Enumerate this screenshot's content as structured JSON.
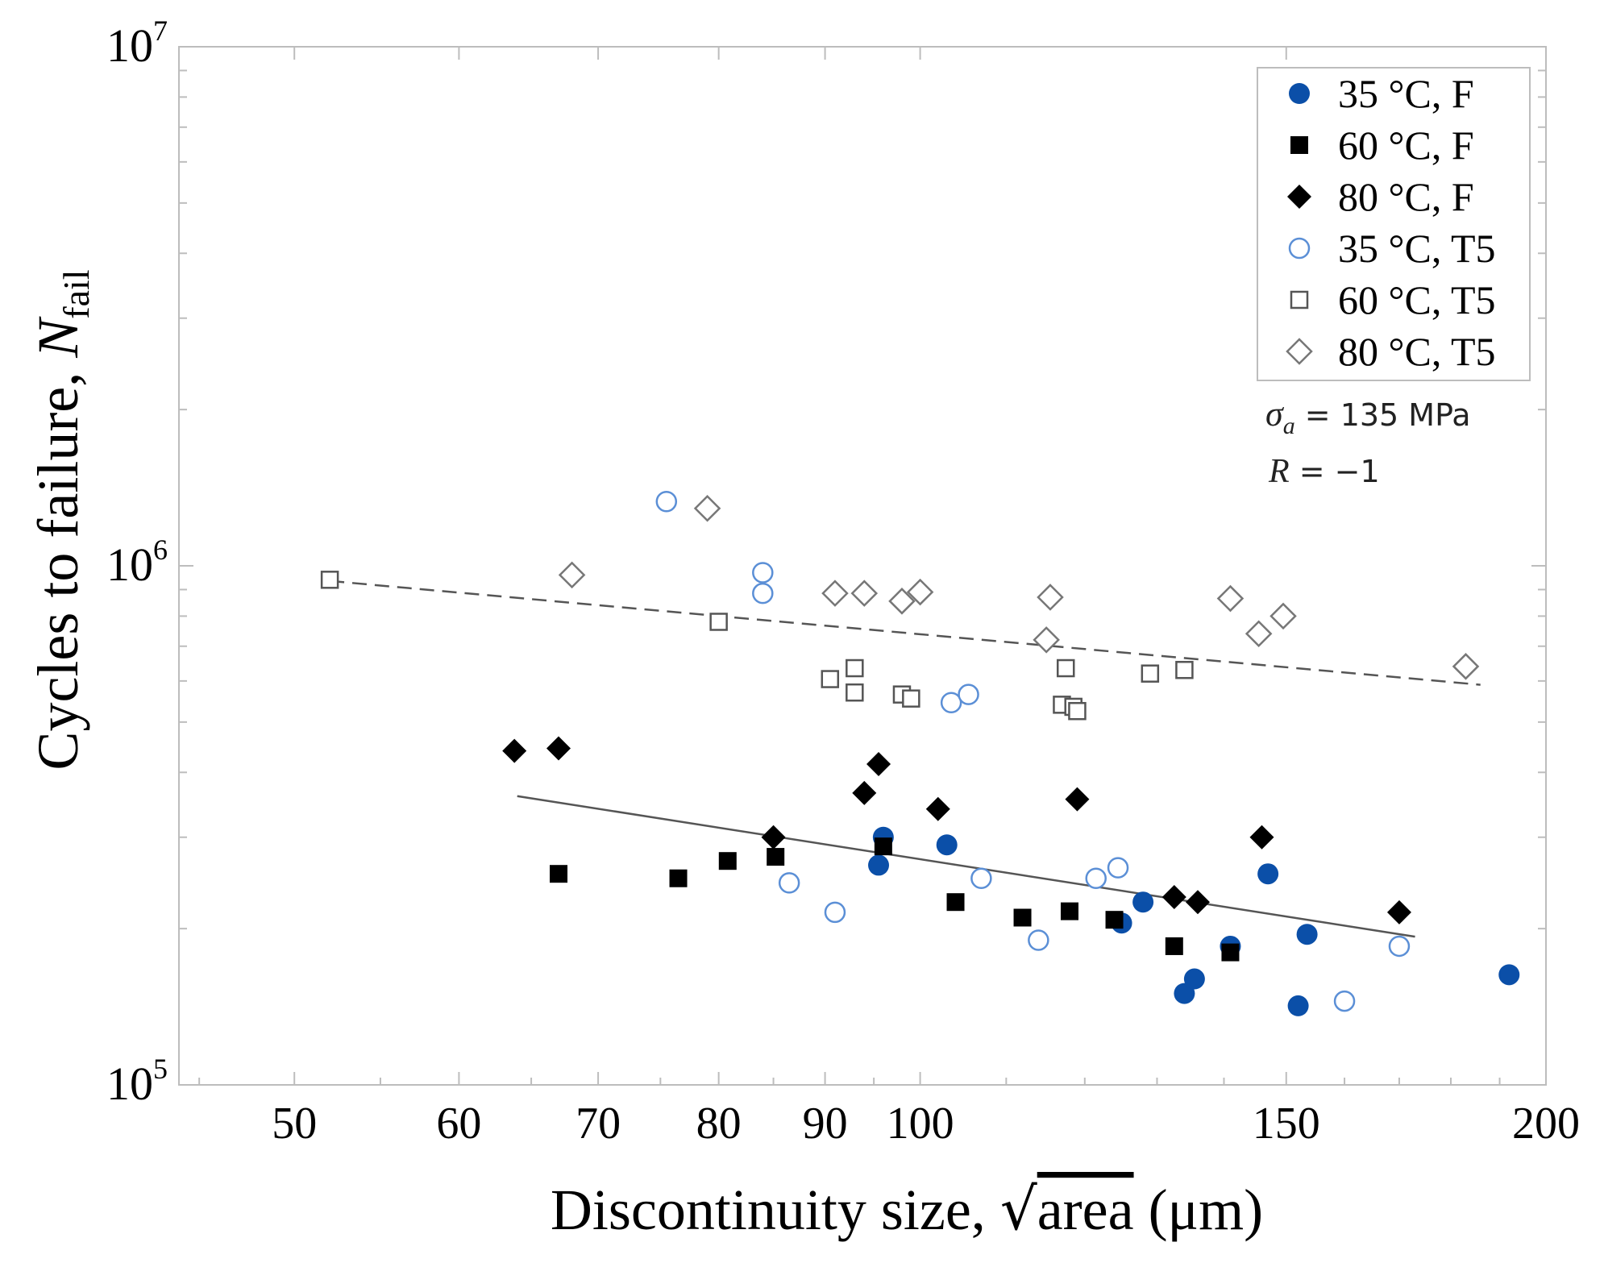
{
  "chart_data": {
    "type": "scatter",
    "xaxis": {
      "label_main": "Discontinuity size, ",
      "label_sqrt": "area",
      "label_unit": " (μm)",
      "scale": "log",
      "range": [
        44,
        200
      ],
      "ticks": [
        50,
        60,
        70,
        80,
        90,
        100,
        150,
        200
      ],
      "tick_labels": [
        "50",
        "60",
        "70",
        "80",
        "90",
        "100",
        "150",
        "200"
      ]
    },
    "yaxis": {
      "label_main": "Cycles to failure, ",
      "label_var": "N",
      "label_sub": "fail",
      "scale": "log",
      "range": [
        100000,
        10000000
      ],
      "ticks": [
        100000,
        1000000,
        10000000
      ],
      "tick_mantissa": [
        "10",
        "10",
        "10"
      ],
      "tick_exponent": [
        "5",
        "6",
        "7"
      ]
    },
    "legend": {
      "position": "top-right",
      "entries": [
        {
          "label": "35 °C, F",
          "marker": "circle",
          "filled": true,
          "color": "#0b4fa8"
        },
        {
          "label": "60 °C, F",
          "marker": "square",
          "filled": true,
          "color": "#000000"
        },
        {
          "label": "80 °C, F",
          "marker": "diamond",
          "filled": true,
          "color": "#000000"
        },
        {
          "label": "35 °C, T5",
          "marker": "circle",
          "filled": false,
          "color": "#5b8fd6"
        },
        {
          "label": "60 °C, T5",
          "marker": "square",
          "filled": false,
          "color": "#555555"
        },
        {
          "label": "80 °C, T5",
          "marker": "diamond",
          "filled": false,
          "color": "#777777"
        }
      ]
    },
    "annotations": {
      "sigma_var": "σ",
      "sigma_sub": "a",
      "sigma_rest": " = 135 MPa",
      "r_var": "R",
      "r_rest": " = −1"
    },
    "series": [
      {
        "name": "35 °C, F",
        "points": [
          {
            "x": 96,
            "y": 300000
          },
          {
            "x": 95.5,
            "y": 265000
          },
          {
            "x": 103,
            "y": 290000
          },
          {
            "x": 125,
            "y": 205000
          },
          {
            "x": 128,
            "y": 225000
          },
          {
            "x": 134,
            "y": 150000
          },
          {
            "x": 135.5,
            "y": 160000
          },
          {
            "x": 141,
            "y": 185000
          },
          {
            "x": 147,
            "y": 255000
          },
          {
            "x": 152,
            "y": 142000
          },
          {
            "x": 153.5,
            "y": 195000
          },
          {
            "x": 192,
            "y": 163000
          }
        ]
      },
      {
        "name": "60 °C, F",
        "points": [
          {
            "x": 67,
            "y": 255000
          },
          {
            "x": 76.5,
            "y": 250000
          },
          {
            "x": 80.8,
            "y": 270000
          },
          {
            "x": 85.2,
            "y": 275000
          },
          {
            "x": 96,
            "y": 288000
          },
          {
            "x": 104,
            "y": 225000
          },
          {
            "x": 112,
            "y": 210000
          },
          {
            "x": 118,
            "y": 216000
          },
          {
            "x": 124,
            "y": 208000
          },
          {
            "x": 132.5,
            "y": 185000
          },
          {
            "x": 141,
            "y": 180000
          }
        ]
      },
      {
        "name": "80 °C, F",
        "points": [
          {
            "x": 63.8,
            "y": 440000
          },
          {
            "x": 67,
            "y": 445000
          },
          {
            "x": 85,
            "y": 300000
          },
          {
            "x": 94,
            "y": 365000
          },
          {
            "x": 95.5,
            "y": 415000
          },
          {
            "x": 102,
            "y": 340000
          },
          {
            "x": 119,
            "y": 355000
          },
          {
            "x": 132.5,
            "y": 230000
          },
          {
            "x": 136,
            "y": 225000
          },
          {
            "x": 146,
            "y": 300000
          },
          {
            "x": 170,
            "y": 215000
          }
        ]
      },
      {
        "name": "35 °C, T5",
        "points": [
          {
            "x": 75.5,
            "y": 1330000
          },
          {
            "x": 84,
            "y": 970000
          },
          {
            "x": 84,
            "y": 885000
          },
          {
            "x": 86.5,
            "y": 245000
          },
          {
            "x": 91,
            "y": 215000
          },
          {
            "x": 103.5,
            "y": 545000
          },
          {
            "x": 105.5,
            "y": 565000
          },
          {
            "x": 107,
            "y": 250000
          },
          {
            "x": 114,
            "y": 190000
          },
          {
            "x": 121.5,
            "y": 250000
          },
          {
            "x": 124.5,
            "y": 262000
          },
          {
            "x": 160,
            "y": 145000
          },
          {
            "x": 170,
            "y": 185000
          }
        ]
      },
      {
        "name": "60 °C, T5",
        "points": [
          {
            "x": 52,
            "y": 940000
          },
          {
            "x": 80,
            "y": 780000
          },
          {
            "x": 90.5,
            "y": 605000
          },
          {
            "x": 93,
            "y": 635000
          },
          {
            "x": 93,
            "y": 570000
          },
          {
            "x": 98,
            "y": 565000
          },
          {
            "x": 99,
            "y": 555000
          },
          {
            "x": 117,
            "y": 540000
          },
          {
            "x": 117.5,
            "y": 635000
          },
          {
            "x": 118.5,
            "y": 535000
          },
          {
            "x": 119,
            "y": 525000
          },
          {
            "x": 129,
            "y": 620000
          },
          {
            "x": 134,
            "y": 630000
          }
        ]
      },
      {
        "name": "80 °C, T5",
        "points": [
          {
            "x": 68,
            "y": 960000
          },
          {
            "x": 79,
            "y": 1290000
          },
          {
            "x": 91,
            "y": 885000
          },
          {
            "x": 94,
            "y": 885000
          },
          {
            "x": 98,
            "y": 855000
          },
          {
            "x": 100,
            "y": 890000
          },
          {
            "x": 115,
            "y": 720000
          },
          {
            "x": 115.5,
            "y": 870000
          },
          {
            "x": 141,
            "y": 865000
          },
          {
            "x": 145.5,
            "y": 740000
          },
          {
            "x": 149.5,
            "y": 800000
          },
          {
            "x": 183,
            "y": 640000
          }
        ]
      }
    ],
    "fit_lines": [
      {
        "style": "solid",
        "color": "#555555",
        "x": [
          64,
          173
        ],
        "y": [
          360000,
          193000
        ]
      },
      {
        "style": "dashed",
        "color": "#555555",
        "x": [
          52,
          186
        ],
        "y": [
          935000,
          590000
        ]
      }
    ]
  }
}
